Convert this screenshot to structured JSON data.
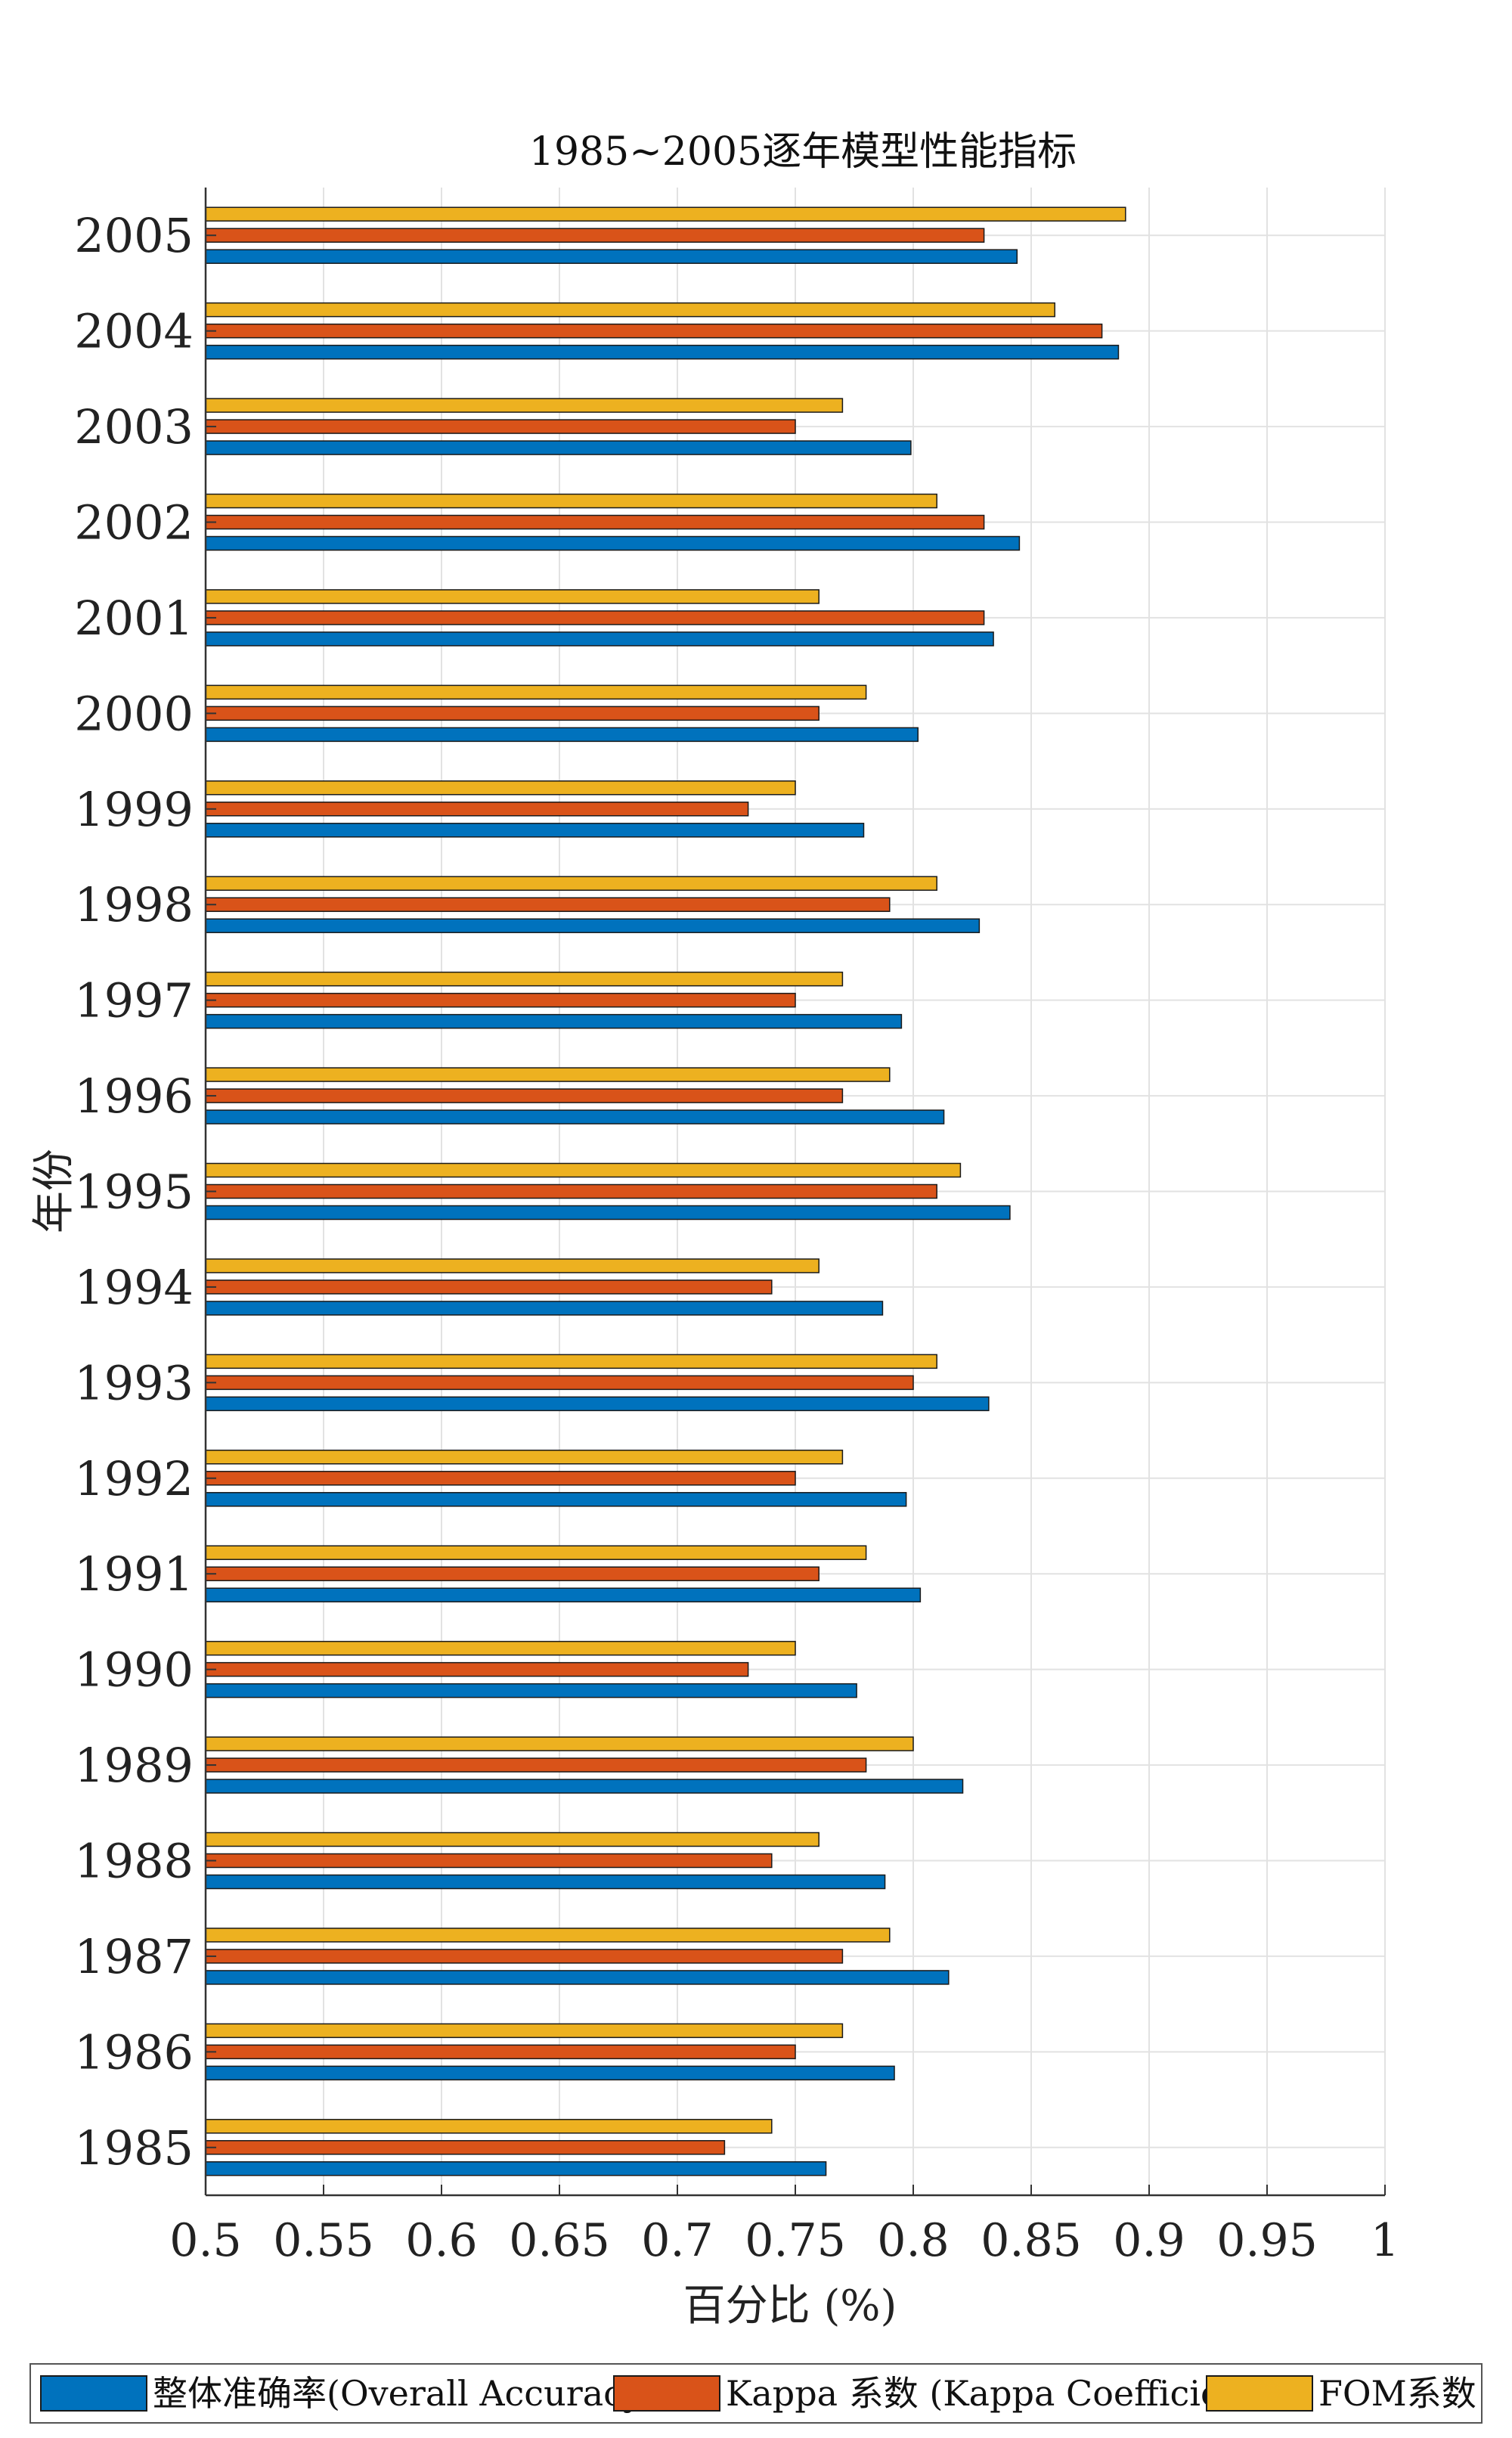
{
  "chart_data": {
    "type": "bar",
    "orientation": "horizontal",
    "title": "1985~2005逐年模型性能指标",
    "xlabel": "百分比 (%)",
    "ylabel": "年份",
    "xlim": [
      0.5,
      1
    ],
    "xticks": [
      "0.5",
      "0.55",
      "0.6",
      "0.65",
      "0.7",
      "0.75",
      "0.8",
      "0.85",
      "0.9",
      "0.95",
      "1"
    ],
    "grid": true,
    "legend_position": "bottom",
    "categories": [
      "1985",
      "1986",
      "1987",
      "1988",
      "1989",
      "1990",
      "1991",
      "1992",
      "1993",
      "1994",
      "1995",
      "1996",
      "1997",
      "1998",
      "1999",
      "2000",
      "2001",
      "2002",
      "2003",
      "2004",
      "2005"
    ],
    "series": [
      {
        "name": "整体准确率(Overall Accuracy)",
        "color": "#0072BD",
        "values": [
          0.763,
          0.792,
          0.815,
          0.788,
          0.821,
          0.776,
          0.803,
          0.797,
          0.832,
          0.787,
          0.841,
          0.813,
          0.795,
          0.828,
          0.779,
          0.802,
          0.834,
          0.845,
          0.799,
          0.887,
          0.844
        ]
      },
      {
        "name": "Kappa 系数 (Kappa Coefficient)",
        "color": "#D95319",
        "values": [
          0.72,
          0.75,
          0.77,
          0.74,
          0.78,
          0.73,
          0.76,
          0.75,
          0.8,
          0.74,
          0.81,
          0.77,
          0.75,
          0.79,
          0.73,
          0.76,
          0.83,
          0.83,
          0.75,
          0.88,
          0.83
        ]
      },
      {
        "name": "FOM系数",
        "color": "#EDB120",
        "values": [
          0.74,
          0.77,
          0.79,
          0.76,
          0.8,
          0.75,
          0.78,
          0.77,
          0.81,
          0.76,
          0.82,
          0.79,
          0.77,
          0.81,
          0.75,
          0.78,
          0.76,
          0.81,
          0.77,
          0.86,
          0.89
        ]
      }
    ]
  }
}
